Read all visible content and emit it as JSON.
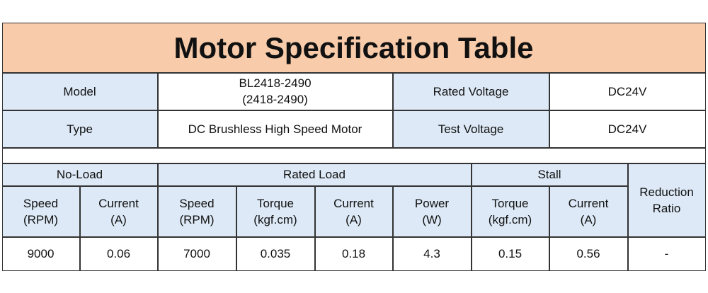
{
  "title": "Motor Specification Table",
  "info_rows": [
    [
      "Model",
      [
        "BL2418-2490",
        "(2418-2490)"
      ],
      "Rated Voltage",
      "DC24V"
    ],
    [
      "Type",
      "DC Brushless High Speed Motor",
      "Test Voltage",
      "DC24V"
    ]
  ],
  "groups": [
    "No-Load",
    "Rated Load",
    "Stall",
    "Reduction Ratio"
  ],
  "columns": [
    [
      "Speed",
      "(RPM)"
    ],
    [
      "Current",
      "(A)"
    ],
    [
      "Speed",
      "(RPM)"
    ],
    [
      "Torque",
      "(kgf.cm)"
    ],
    [
      "Current",
      "(A)"
    ],
    [
      "Power",
      "(W)"
    ],
    [
      "Torque",
      "(kgf.cm)"
    ],
    [
      "Current",
      "(A)"
    ]
  ],
  "values": [
    9000,
    0.06,
    7000,
    0.035,
    0.18,
    4.3,
    0.15,
    0.56,
    "-"
  ]
}
